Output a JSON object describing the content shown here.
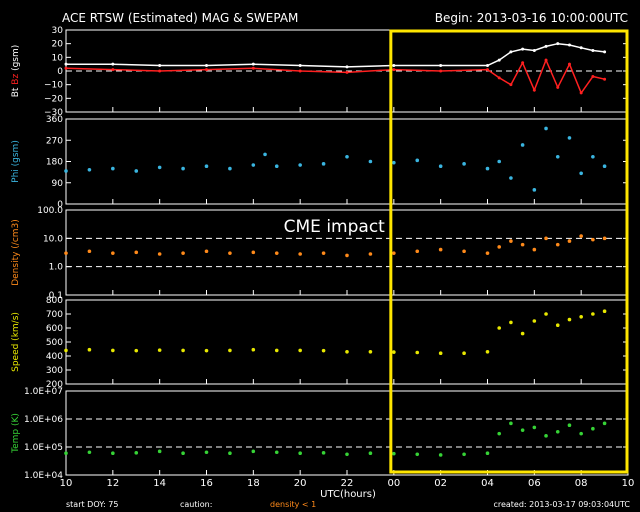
{
  "header": {
    "title": "ACE RTSW (Estimated) MAG & SWEPAM",
    "begin": "Begin: 2013-03-16 10:00:00UTC"
  },
  "footer": {
    "start_doy": "start DOY:  75",
    "caution": "caution:",
    "density_note": "density < 1",
    "created": "created: 2013-03-17 09:03:04UTC"
  },
  "annotation": {
    "label": "CME impact",
    "box_color": "#ffe600",
    "x_start": 24.0,
    "x_end": 34.0
  },
  "chart_data": {
    "type": "scatter",
    "xlabel": "UTC(hours)",
    "xlim": [
      10,
      34
    ],
    "x_tick_labels": [
      "10",
      "12",
      "14",
      "16",
      "18",
      "20",
      "22",
      "00",
      "02",
      "04",
      "06",
      "08",
      "10"
    ],
    "panels": [
      {
        "id": "mag",
        "ylabel_parts": [
          {
            "text": "Bt",
            "color": "#ffffff"
          },
          {
            "text": " Bz",
            "color": "#ff2020"
          },
          {
            "text": " (gsm)",
            "color": "#ffffff"
          }
        ],
        "scale": "linear",
        "ylim": [
          -30,
          30
        ],
        "ticks": [
          30,
          20,
          10,
          0,
          -10,
          -20,
          -30
        ],
        "tick_labels": [
          "30",
          "20",
          "10",
          "0",
          "−10",
          "−20",
          "−30"
        ],
        "dashed": [
          0
        ],
        "series": [
          {
            "name": "Bt",
            "color": "#ffffff",
            "style": "line",
            "x": [
              10,
              12,
              14,
              16,
              18,
              20,
              22,
              24,
              26,
              28,
              28.5,
              29,
              29.5,
              30,
              30.5,
              31,
              31.5,
              32,
              32.5,
              33
            ],
            "y": [
              5,
              5,
              4,
              4,
              5,
              4,
              3,
              4,
              4,
              4,
              8,
              14,
              16,
              15,
              18,
              20,
              19,
              17,
              15,
              14
            ]
          },
          {
            "name": "Bz",
            "color": "#ff2020",
            "style": "line",
            "x": [
              10,
              12,
              14,
              16,
              18,
              20,
              22,
              24,
              26,
              28,
              28.5,
              29,
              29.5,
              30,
              30.5,
              31,
              31.5,
              32,
              32.5,
              33
            ],
            "y": [
              2,
              1,
              0,
              1,
              2,
              0,
              -1,
              1,
              0,
              1,
              -5,
              -10,
              6,
              -14,
              8,
              -12,
              5,
              -16,
              -4,
              -6
            ]
          }
        ]
      },
      {
        "id": "phi",
        "ylabel_parts": [
          {
            "text": "Phi (gsm)",
            "color": "#3ab5e0"
          }
        ],
        "scale": "linear",
        "ylim": [
          0,
          360
        ],
        "ticks": [
          360,
          270,
          180,
          90,
          0
        ],
        "tick_labels": [
          "360",
          "270",
          "180",
          "90",
          "0"
        ],
        "dashed": [],
        "series": [
          {
            "name": "Phi",
            "color": "#3ab5e0",
            "style": "dots",
            "x": [
              10,
              11,
              12,
              13,
              14,
              15,
              16,
              17,
              18,
              18.5,
              19,
              20,
              21,
              22,
              23,
              24,
              25,
              26,
              27,
              28,
              28.5,
              29,
              29.5,
              30,
              30.5,
              31,
              31.5,
              32,
              32.5,
              33
            ],
            "y": [
              140,
              145,
              150,
              140,
              155,
              150,
              160,
              150,
              165,
              210,
              160,
              165,
              170,
              200,
              180,
              175,
              185,
              160,
              170,
              150,
              180,
              110,
              250,
              60,
              320,
              200,
              280,
              130,
              200,
              160
            ]
          }
        ]
      },
      {
        "id": "density",
        "ylabel_parts": [
          {
            "text": "Density (/cm3)",
            "color": "#ff8a1a"
          }
        ],
        "scale": "log",
        "ylim": [
          0.1,
          100
        ],
        "ticks": [
          100,
          10,
          1,
          0.1
        ],
        "tick_labels": [
          "100.0",
          "10.0",
          "1.0",
          "0.1"
        ],
        "dashed": [
          10,
          1
        ],
        "series": [
          {
            "name": "Density",
            "color": "#ff8a1a",
            "style": "dots",
            "x": [
              10,
              11,
              12,
              13,
              14,
              15,
              16,
              17,
              18,
              19,
              20,
              21,
              22,
              23,
              24,
              25,
              26,
              27,
              28,
              28.5,
              29,
              29.5,
              30,
              30.5,
              31,
              31.5,
              32,
              32.5,
              33
            ],
            "y": [
              3,
              3.5,
              3,
              3.2,
              2.8,
              3,
              3.5,
              3,
              3.2,
              3,
              2.8,
              3,
              2.5,
              2.8,
              3,
              3.5,
              4,
              3.5,
              3,
              5,
              8,
              6,
              4,
              10,
              6,
              8,
              12,
              9,
              10
            ]
          }
        ]
      },
      {
        "id": "speed",
        "ylabel_parts": [
          {
            "text": "Speed (km/s)",
            "color": "#e8e800"
          }
        ],
        "scale": "linear",
        "ylim": [
          200,
          800
        ],
        "ticks": [
          800,
          700,
          600,
          500,
          400,
          300,
          200
        ],
        "tick_labels": [
          "800",
          "700",
          "600",
          "500",
          "400",
          "300",
          "200"
        ],
        "dashed": [],
        "series": [
          {
            "name": "Speed",
            "color": "#e8e800",
            "style": "dots",
            "x": [
              10,
              11,
              12,
              13,
              14,
              15,
              16,
              17,
              18,
              19,
              20,
              21,
              22,
              23,
              24,
              25,
              26,
              27,
              28,
              28.5,
              29,
              29.5,
              30,
              30.5,
              31,
              31.5,
              32,
              32.5,
              33
            ],
            "y": [
              440,
              445,
              440,
              438,
              442,
              440,
              438,
              440,
              445,
              440,
              440,
              438,
              430,
              430,
              428,
              425,
              420,
              420,
              430,
              600,
              640,
              560,
              650,
              700,
              620,
              660,
              680,
              700,
              720
            ]
          }
        ]
      },
      {
        "id": "temp",
        "ylabel_parts": [
          {
            "text": "Temp (K)",
            "color": "#36d336"
          }
        ],
        "scale": "log",
        "ylim": [
          10000,
          10000000
        ],
        "ticks": [
          10000000,
          1000000,
          100000,
          10000
        ],
        "tick_labels": [
          "1.0E+07",
          "1.0E+06",
          "1.0E+05",
          "1.0E+04"
        ],
        "dashed": [
          1000000,
          100000
        ],
        "series": [
          {
            "name": "Temp",
            "color": "#36d336",
            "style": "dots",
            "x": [
              10,
              11,
              12,
              13,
              14,
              15,
              16,
              17,
              18,
              19,
              20,
              21,
              22,
              23,
              24,
              25,
              26,
              27,
              28,
              28.5,
              29,
              29.5,
              30,
              30.5,
              31,
              31.5,
              32,
              32.5,
              33
            ],
            "y": [
              60000,
              65000,
              60000,
              62000,
              70000,
              60000,
              65000,
              60000,
              70000,
              65000,
              60000,
              62000,
              55000,
              60000,
              58000,
              55000,
              52000,
              55000,
              60000,
              300000,
              700000,
              400000,
              500000,
              250000,
              350000,
              600000,
              300000,
              450000,
              700000
            ]
          }
        ]
      }
    ]
  }
}
